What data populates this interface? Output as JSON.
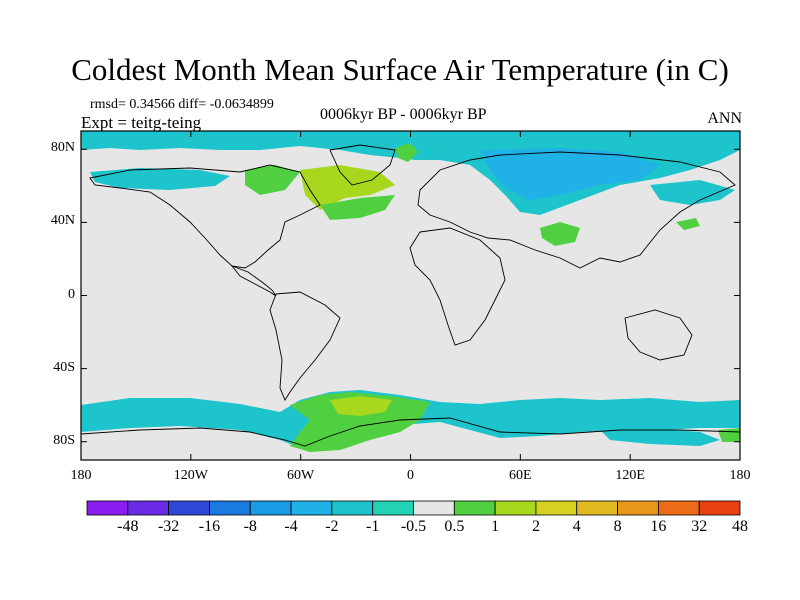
{
  "title": "Coldest Month Mean Surface Air Temperature (in C)",
  "stats": "rmsd= 0.34566 diff= -0.0634899",
  "expt": "Expt = teitg-teing",
  "subtitle": "0006kyr BP - 0006kyr BP",
  "season": "ANN",
  "lat_labels": [
    "80N",
    "40N",
    "0",
    "40S",
    "80S"
  ],
  "lat_values": [
    80,
    40,
    0,
    -40,
    -80
  ],
  "lon_labels": [
    "180",
    "120W",
    "60W",
    "0",
    "60E",
    "120E",
    "180"
  ],
  "lon_values": [
    -180,
    -120,
    -60,
    0,
    60,
    120,
    180
  ],
  "colorbar": {
    "labels": [
      "-48",
      "-32",
      "-16",
      "-8",
      "-4",
      "-2",
      "-1",
      "-0.5",
      "0.5",
      "1",
      "2",
      "4",
      "8",
      "16",
      "32",
      "48"
    ],
    "colors": [
      "#8a1ef0",
      "#6a2ae6",
      "#2f46d8",
      "#1a7ae0",
      "#1a9be8",
      "#20b2e6",
      "#1ec4cc",
      "#22d2b4",
      "#e6e6e6",
      "#50d040",
      "#a8d81e",
      "#d6d020",
      "#e0b820",
      "#e8981c",
      "#ec6a18",
      "#e84010"
    ]
  },
  "colors": {
    "land_background": "#e6e6e6",
    "cool_anomaly": "#1ec4cc",
    "cooler_anomaly": "#20b2e6",
    "warm_anomaly": "#50d040",
    "warmer_anomaly": "#a8d81e"
  }
}
